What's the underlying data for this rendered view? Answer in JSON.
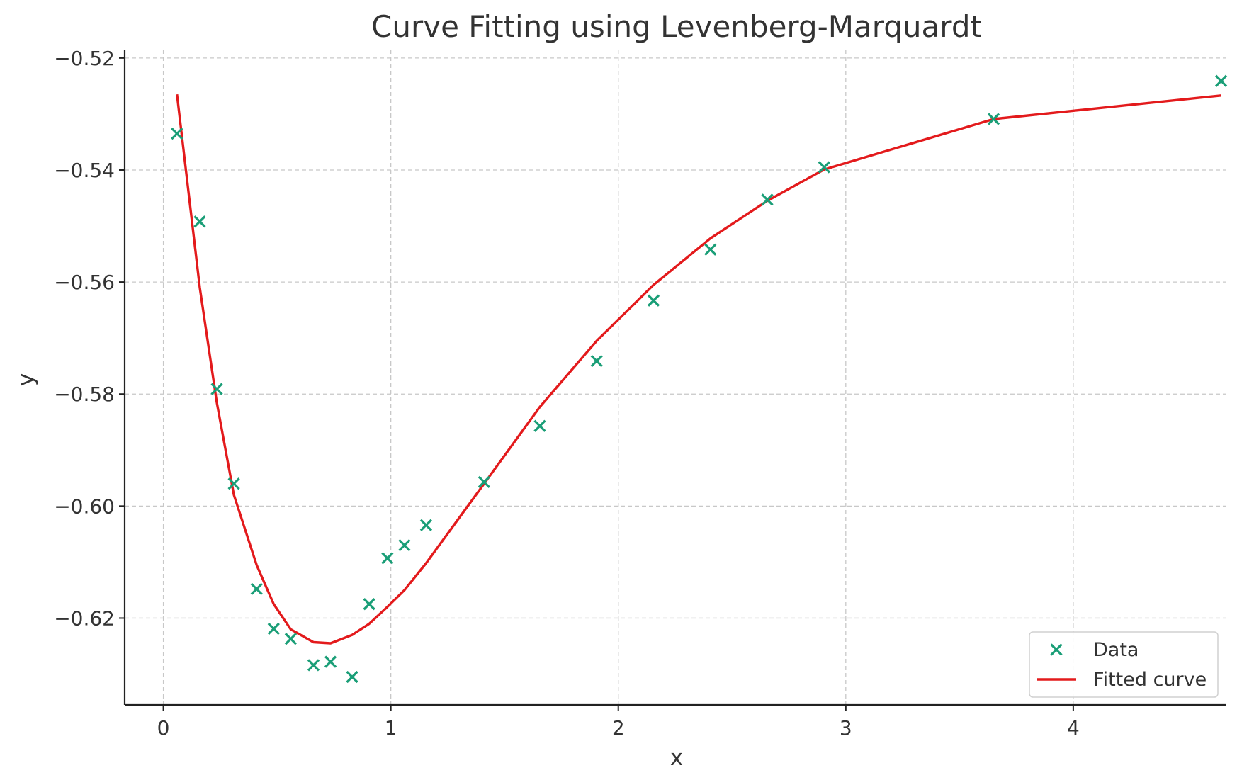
{
  "chart_data": {
    "type": "scatter",
    "title": "Curve Fitting using Levenberg-Marquardt",
    "xlabel": "x",
    "ylabel": "y",
    "xlim": [
      -0.17,
      4.67
    ],
    "ylim": [
      -0.6355,
      -0.5185
    ],
    "xticks": [
      0,
      1,
      2,
      3,
      4
    ],
    "xtick_labels": [
      "0",
      "1",
      "2",
      "3",
      "4"
    ],
    "yticks": [
      -0.52,
      -0.54,
      -0.56,
      -0.58,
      -0.6,
      -0.62
    ],
    "ytick_labels": [
      "−0.52",
      "−0.54",
      "−0.56",
      "−0.58",
      "−0.60",
      "−0.62"
    ],
    "grid": true,
    "legend": {
      "position": "lower right",
      "entries": [
        "Data",
        "Fitted curve"
      ]
    },
    "series": [
      {
        "name": "Data",
        "kind": "scatter",
        "marker": "x",
        "color": "#1a9e77",
        "x": [
          0.06,
          0.16,
          0.235,
          0.31,
          0.41,
          0.485,
          0.56,
          0.66,
          0.735,
          0.83,
          0.905,
          0.985,
          1.06,
          1.155,
          1.41,
          1.655,
          1.905,
          2.155,
          2.405,
          2.655,
          2.905,
          3.65,
          4.65
        ],
        "y": [
          -0.5335,
          -0.5492,
          -0.5791,
          -0.596,
          -0.6148,
          -0.6219,
          -0.6237,
          -0.6284,
          -0.6278,
          -0.6305,
          -0.6175,
          -0.6093,
          -0.607,
          -0.6034,
          -0.5957,
          -0.5857,
          -0.5741,
          -0.5633,
          -0.5542,
          -0.5453,
          -0.5395,
          -0.5309,
          -0.5241
        ]
      },
      {
        "name": "Fitted curve",
        "kind": "line",
        "color": "#e31a1c",
        "x": [
          0.06,
          0.16,
          0.235,
          0.31,
          0.41,
          0.485,
          0.56,
          0.66,
          0.735,
          0.83,
          0.905,
          0.985,
          1.06,
          1.155,
          1.41,
          1.655,
          1.905,
          2.155,
          2.405,
          2.655,
          2.905,
          3.65,
          4.65
        ],
        "y": [
          -0.5265,
          -0.561,
          -0.5815,
          -0.598,
          -0.6105,
          -0.6175,
          -0.622,
          -0.6243,
          -0.6245,
          -0.623,
          -0.621,
          -0.618,
          -0.615,
          -0.6102,
          -0.596,
          -0.5823,
          -0.5705,
          -0.5605,
          -0.5522,
          -0.5455,
          -0.5399,
          -0.5309,
          -0.5267
        ]
      }
    ]
  }
}
